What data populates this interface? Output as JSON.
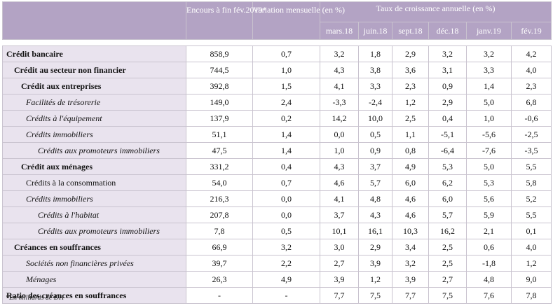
{
  "header": {
    "col_encours": "Encours à fin fév.2019*",
    "col_variation": "Variation mensuelle (en %)",
    "col_taux": "Taux de croissance annuelle (en %)",
    "periods": [
      "mars.18",
      "juin.18",
      "sept.18",
      "déc.18",
      "janv.19",
      "fév.19"
    ]
  },
  "rows": [
    {
      "label": "Crédit bancaire",
      "encours": "858,9",
      "variation": "0,7",
      "values": [
        "3,2",
        "1,8",
        "2,9",
        "3,2",
        "3,2",
        "4,2"
      ]
    },
    {
      "label": "Crédit au secteur non financier",
      "encours": "744,5",
      "variation": "1,0",
      "values": [
        "4,3",
        "3,8",
        "3,6",
        "3,1",
        "3,3",
        "4,0"
      ]
    },
    {
      "label": "Crédit aux entreprises",
      "encours": "392,8",
      "variation": "1,5",
      "values": [
        "4,1",
        "3,3",
        "2,3",
        "0,9",
        "1,4",
        "2,3"
      ]
    },
    {
      "label": "Facilités de trésorerie",
      "encours": "149,0",
      "variation": "2,4",
      "values": [
        "-3,3",
        "-2,4",
        "1,2",
        "2,9",
        "5,0",
        "6,8"
      ]
    },
    {
      "label": "Crédits à l'équipement",
      "encours": "137,9",
      "variation": "0,2",
      "values": [
        "14,2",
        "10,0",
        "2,5",
        "0,4",
        "1,0",
        "-0,6"
      ]
    },
    {
      "label": "Crédits immobiliers",
      "encours": "51,1",
      "variation": "1,4",
      "values": [
        "0,0",
        "0,5",
        "1,1",
        "-5,1",
        "-5,6",
        "-2,5"
      ]
    },
    {
      "label": "Crédits aux promoteurs immobiliers",
      "encours": "47,5",
      "variation": "1,4",
      "values": [
        "1,0",
        "0,9",
        "0,8",
        "-6,4",
        "-7,6",
        "-3,5"
      ]
    },
    {
      "label": "Crédit aux ménages",
      "encours": "331,2",
      "variation": "0,4",
      "values": [
        "4,3",
        "3,7",
        "4,9",
        "5,3",
        "5,0",
        "5,5"
      ]
    },
    {
      "label": "Crédits à la consommation",
      "encours": "54,0",
      "variation": "0,7",
      "values": [
        "4,6",
        "5,7",
        "6,0",
        "6,2",
        "5,3",
        "5,8"
      ]
    },
    {
      "label": "Crédits immobiliers",
      "encours": "216,3",
      "variation": "0,0",
      "values": [
        "4,1",
        "4,8",
        "4,6",
        "6,0",
        "5,6",
        "5,2"
      ]
    },
    {
      "label": "Crédits à l'habitat",
      "encours": "207,8",
      "variation": "0,0",
      "values": [
        "3,7",
        "4,3",
        "4,6",
        "5,7",
        "5,9",
        "5,5"
      ]
    },
    {
      "label": "Crédits aux promoteurs immobiliers",
      "encours": "7,8",
      "variation": "0,5",
      "values": [
        "10,1",
        "16,1",
        "10,3",
        "16,2",
        "2,1",
        "0,1"
      ]
    },
    {
      "label": "Créances en souffrances",
      "encours": "66,9",
      "variation": "3,2",
      "values": [
        "3,0",
        "2,9",
        "3,4",
        "2,5",
        "0,6",
        "4,0"
      ]
    },
    {
      "label": "Sociétés non financières privées",
      "encours": "39,7",
      "variation": "2,2",
      "values": [
        "2,7",
        "3,9",
        "3,2",
        "2,5",
        "-1,8",
        "1,2"
      ]
    },
    {
      "label": "Ménages",
      "encours": "26,3",
      "variation": "4,9",
      "values": [
        "3,9",
        "1,2",
        "3,9",
        "2,7",
        "4,8",
        "9,0"
      ]
    },
    {
      "label": "Ratio des créances en souffrances",
      "encours": "-",
      "variation": "-",
      "values": [
        "7,7",
        "7,5",
        "7,7",
        "7,5",
        "7,6",
        "7,8"
      ]
    }
  ],
  "footnote": "*En milliards de DH"
}
